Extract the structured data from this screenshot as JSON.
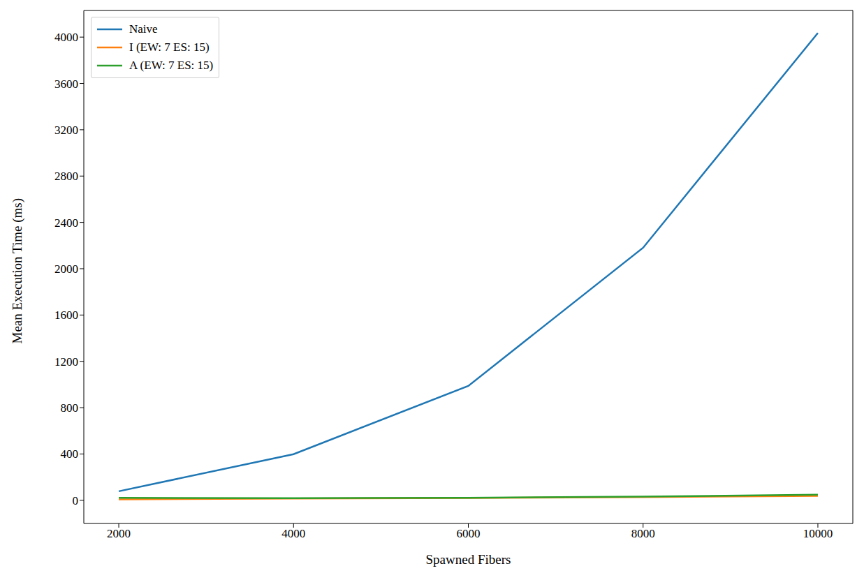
{
  "chart_data": {
    "type": "line",
    "x_label": "Spawned Fibers",
    "y_label": "Mean Execution Time (ms)",
    "x": [
      2000,
      4000,
      6000,
      8000,
      10000
    ],
    "series": [
      {
        "name": "Naive",
        "color": "#1f77b4",
        "values": [
          78,
          398,
          988,
          2181,
          4036
        ]
      },
      {
        "name": "I (EW: 7 ES: 15)",
        "color": "#ff7f0e",
        "values": [
          8,
          15,
          20,
          28,
          38
        ]
      },
      {
        "name": "A (EW: 7 ES: 15)",
        "color": "#2ca02c",
        "values": [
          22,
          18,
          22,
          32,
          48
        ]
      }
    ],
    "xlim": [
      1600,
      10400
    ],
    "xticks": [
      2000,
      4000,
      6000,
      8000,
      10000
    ],
    "ylim": [
      -200,
      4230
    ],
    "yticks": [
      0,
      400,
      800,
      1200,
      1600,
      2000,
      2400,
      2800,
      3200,
      3600,
      4000
    ],
    "grid": false,
    "legend": "upper left"
  }
}
